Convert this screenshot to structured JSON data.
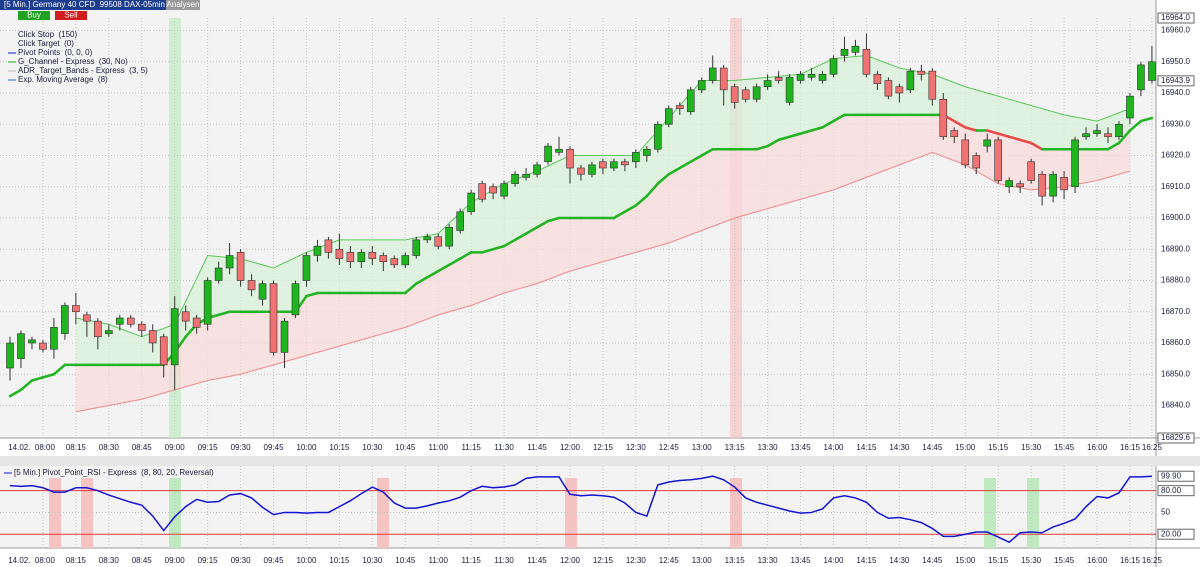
{
  "toolbar": {
    "buy": "Buy",
    "sell": "Sell",
    "analysen": "Analysen"
  },
  "chart_data": [
    {
      "type": "candlestick",
      "title": "[5 Min.] Germany 40 CFD  99508 DAX-05min",
      "legend": [
        "Click Stop  (150)",
        "Click Target  (0)",
        "Pivot Points  (0, 0, 0)",
        "G_Channel - Express  (30, No)",
        "ADR_Target_Bands - Express  (3, 5)",
        "Exp. Moving Average  (8)"
      ],
      "categories": [
        null,
        null,
        null,
        "14.02.  08:00",
        null,
        null,
        "08:15",
        null,
        null,
        "08:30",
        null,
        null,
        "08:45",
        null,
        null,
        "09:00",
        null,
        null,
        "09:15",
        null,
        null,
        "09:30",
        null,
        null,
        "09:45",
        null,
        null,
        "10:00",
        null,
        null,
        "10:15",
        null,
        null,
        "10:30",
        null,
        null,
        "10:45",
        null,
        null,
        "11:00",
        null,
        null,
        "11:15",
        null,
        null,
        "11:30",
        null,
        null,
        "11:45",
        null,
        null,
        "12:00",
        null,
        null,
        "12:15",
        null,
        null,
        "12:30",
        null,
        null,
        "12:45",
        null,
        null,
        "13:00",
        null,
        null,
        "13:15",
        null,
        null,
        "13:30",
        null,
        null,
        "13:45",
        null,
        null,
        "14:00",
        null,
        null,
        "14:15",
        null,
        null,
        "14:30",
        null,
        null,
        "14:45",
        null,
        null,
        "15:00",
        null,
        null,
        "15:15",
        null,
        null,
        "15:30",
        null,
        null,
        "15:45",
        null,
        null,
        "16:00",
        null,
        null,
        "16:15",
        null,
        "16:25"
      ],
      "open": [
        16852,
        16855,
        16860,
        16860,
        16858,
        16863,
        16872,
        16869,
        16867,
        16863,
        16866,
        16868,
        16866,
        16864,
        16862,
        16853,
        16870,
        16868,
        16866,
        16880,
        16884,
        16889,
        16880,
        16874,
        16879,
        16857,
        16869,
        16880,
        16888,
        16893,
        16890,
        16889,
        16886,
        16889,
        16888,
        16887,
        16885,
        16888,
        16893,
        16894,
        16891,
        16896,
        16902,
        16911,
        16910,
        16907,
        16911,
        16913,
        16914,
        16918,
        16921,
        16922,
        16916,
        16914,
        16918,
        16916,
        16918,
        16918,
        16920,
        16922,
        16930,
        16936,
        16934,
        16941,
        16944,
        16948,
        16942,
        16941,
        16938,
        16942,
        16945,
        16937,
        16944,
        16945,
        16944,
        16946,
        16952,
        16953,
        16954,
        16946,
        16944,
        16942,
        16941,
        16947,
        16947,
        16938,
        16928,
        16925,
        16920,
        16923,
        16925,
        16910,
        16911,
        16918,
        16914,
        16907,
        16913,
        16910,
        16926,
        16927,
        16927,
        16926,
        16932,
        16941,
        16944
      ],
      "high": [
        16862,
        16864,
        16862,
        16861,
        16868,
        16873,
        16876,
        16870,
        16868,
        16866,
        16869,
        16869,
        16867,
        16866,
        16863,
        16875,
        16872,
        16869,
        16881,
        16886,
        16892,
        16890,
        16882,
        16880,
        16880,
        16868,
        16880,
        16889,
        16893,
        16894,
        16895,
        16891,
        16890,
        16891,
        16889,
        16888,
        16889,
        16894,
        16895,
        16895,
        16898,
        16903,
        16909,
        16912,
        16911,
        16912,
        16915,
        16916,
        16918,
        16924,
        16926,
        16923,
        16917,
        16918,
        16919,
        16919,
        16919,
        16922,
        16923,
        16931,
        16936,
        16937,
        16942,
        16945,
        16952,
        16949,
        16943,
        16942,
        16943,
        16946,
        16947,
        16946,
        16947,
        16948,
        16947,
        16952,
        16958,
        16957,
        16959,
        16947,
        16945,
        16943,
        16948,
        16949,
        16948,
        16940,
        16929,
        16927,
        16921,
        16927,
        16926,
        16913,
        16912,
        16919,
        16915,
        16915,
        16915,
        16926,
        16929,
        16930,
        16929,
        16931,
        16940,
        16950,
        16955
      ],
      "low": [
        16848,
        16852,
        16858,
        16857,
        16855,
        16861,
        16866,
        16862,
        16858,
        16862,
        16864,
        16865,
        16862,
        16857,
        16849,
        16845,
        16864,
        16863,
        16864,
        16879,
        16882,
        16878,
        16875,
        16872,
        16856,
        16852,
        16868,
        16878,
        16886,
        16887,
        16885,
        16884,
        16884,
        16885,
        16883,
        16884,
        16884,
        16887,
        16892,
        16890,
        16890,
        16895,
        16901,
        16905,
        16906,
        16906,
        16910,
        16912,
        16913,
        16917,
        16920,
        16911,
        16912,
        16913,
        16914,
        16915,
        16915,
        16916,
        16918,
        16921,
        16929,
        16933,
        16933,
        16940,
        16943,
        16936,
        16935,
        16937,
        16937,
        16941,
        16943,
        16936,
        16943,
        16944,
        16943,
        16945,
        16950,
        16952,
        16945,
        16941,
        16938,
        16937,
        16940,
        16944,
        16936,
        16925,
        16924,
        16916,
        16914,
        16921,
        16911,
        16908,
        16908,
        16911,
        16904,
        16905,
        16906,
        16908,
        16925,
        16926,
        16924,
        16925,
        16930,
        16939,
        16943
      ],
      "close": [
        16860,
        16863,
        16861,
        16858,
        16865,
        16872,
        16870,
        16867,
        16862,
        16864,
        16868,
        16866,
        16864,
        16860,
        16853,
        16871,
        16867,
        16865,
        16880,
        16884,
        16888,
        16880,
        16877,
        16879,
        16857,
        16867,
        16879,
        16888,
        16891,
        16889,
        16887,
        16886,
        16889,
        16887,
        16886,
        16885,
        16888,
        16893,
        16894,
        16891,
        16897,
        16902,
        16908,
        16906,
        16908,
        16911,
        16914,
        16914,
        16917,
        16923,
        16922,
        16916,
        16914,
        16917,
        16916,
        16918,
        16917,
        16921,
        16922,
        16930,
        16935,
        16935,
        16941,
        16944,
        16948,
        16941,
        16937,
        16938,
        16942,
        16944,
        16944,
        16945,
        16946,
        16946,
        16946,
        16951,
        16954,
        16955,
        16946,
        16943,
        16939,
        16940,
        16947,
        16946,
        16938,
        16926,
        16926,
        16917,
        16916,
        16925,
        16912,
        16912,
        16910,
        16912,
        16907,
        16914,
        16909,
        16925,
        16927,
        16928,
        16926,
        16930,
        16939,
        16949,
        16950
      ],
      "up_color": "#1fb51f",
      "down_color": "#f07272",
      "channel": {
        "values": [
          16843,
          16845,
          16848,
          16849,
          16850,
          16853,
          16853,
          16853,
          16853,
          16853,
          16853,
          16853,
          16853,
          16853,
          16853,
          16857,
          16862,
          16866,
          16868,
          16869,
          16870,
          16870,
          16870,
          16870,
          16870,
          16870,
          16870,
          16875,
          16876,
          16876,
          16876,
          16876,
          16876,
          16876,
          16876,
          16876,
          16876,
          16879,
          16881,
          16883,
          16885,
          16887,
          16889,
          16889,
          16890,
          16891,
          16893,
          16895,
          16897,
          16899,
          16900,
          16900,
          16900,
          16900,
          16900,
          16900,
          16902,
          16904,
          16907,
          16911,
          16914,
          16916,
          16918,
          16920,
          16922,
          16922,
          16922,
          16922,
          16922,
          16923,
          16925,
          16926,
          16927,
          16928,
          16929,
          16931,
          16933,
          16933,
          16933,
          16933,
          16933,
          16933,
          16933,
          16933,
          16933,
          16933,
          16931,
          16929,
          16928,
          16928,
          16927,
          16926,
          16925,
          16924,
          16922,
          16922,
          16922,
          16922,
          16922,
          16922,
          16922,
          16924,
          16928,
          16931,
          16932
        ],
        "color": "#22b422",
        "down_color": "#e84a4a"
      },
      "upper_band": {
        "x": [
          "08:15",
          "08:30",
          "08:45",
          "09:00",
          "09:15",
          "09:30",
          "09:45",
          "10:00",
          "10:15",
          "10:30",
          "10:45",
          "11:00",
          "11:15",
          "11:30",
          "11:45",
          "12:00",
          "12:15",
          "12:30",
          "12:45",
          "13:00",
          "13:15",
          "13:30",
          "13:45",
          "14:00",
          "14:15",
          "14:30",
          "14:45",
          "15:00",
          "15:15",
          "15:30",
          "15:45",
          "16:00",
          "16:15"
        ],
        "values": [
          16868,
          16866,
          16862,
          16866,
          16888,
          16887,
          16884,
          16889,
          16893,
          16893,
          16893,
          16895,
          16905,
          16911,
          16915,
          16920,
          16920,
          16920,
          16932,
          16944,
          16944,
          16945,
          16946,
          16951,
          16952,
          16948,
          16946,
          16942,
          16939,
          16936,
          16933,
          16931,
          16935
        ],
        "color": "#5cc95c"
      },
      "lower_band": {
        "x": [
          "08:15",
          "08:30",
          "08:45",
          "09:00",
          "09:15",
          "09:30",
          "09:45",
          "10:00",
          "10:15",
          "10:30",
          "10:45",
          "11:00",
          "11:15",
          "11:30",
          "11:45",
          "12:00",
          "12:15",
          "12:30",
          "12:45",
          "13:00",
          "13:15",
          "13:30",
          "13:45",
          "14:00",
          "14:15",
          "14:30",
          "14:45",
          "15:00",
          "15:15",
          "15:30",
          "15:45",
          "16:00",
          "16:15"
        ],
        "values": [
          16838,
          16840,
          16842,
          16845,
          16848,
          16850,
          16853,
          16856,
          16859,
          16862,
          16865,
          16869,
          16872,
          16876,
          16879,
          16883,
          16886,
          16889,
          16892,
          16896,
          16900,
          16903,
          16906,
          16909,
          16913,
          16917,
          16921,
          16917,
          16911,
          16909,
          16910,
          16912,
          16915
        ],
        "color": "#f08a8a"
      },
      "ylim": [
        16829.6,
        16964
      ],
      "yticks": [
        {
          "value": 16964,
          "label": "16964.0"
        },
        {
          "value": 16960,
          "label": "16960.0"
        },
        {
          "value": 16950,
          "label": "16950.0"
        },
        {
          "value": 16940,
          "label": "16940.0"
        },
        {
          "value": 16930,
          "label": "16930.0"
        },
        {
          "value": 16920,
          "label": "16920.0"
        },
        {
          "value": 16910,
          "label": "16910.0"
        },
        {
          "value": 16900,
          "label": "16900.0"
        },
        {
          "value": 16890,
          "label": "16890.0"
        },
        {
          "value": 16880,
          "label": "16880.0"
        },
        {
          "value": 16870,
          "label": "16870.0"
        },
        {
          "value": 16860,
          "label": "16860.0"
        },
        {
          "value": 16850,
          "label": "16850.0"
        },
        {
          "value": 16840,
          "label": "16840.0"
        },
        16829.6
      ],
      "last_value": 16943.9,
      "grid": true
    },
    {
      "type": "line",
      "title": "[5 Min.] Pivot_Point_RSI - Express  (8, 80, 20, Reversal)",
      "values": [
        87,
        86,
        87,
        84,
        78,
        78,
        84,
        84,
        80,
        74,
        69,
        64,
        60,
        45,
        25,
        44,
        58,
        68,
        64,
        65,
        74,
        76,
        70,
        57,
        47,
        50,
        50,
        49,
        50,
        50,
        58,
        66,
        76,
        85,
        78,
        63,
        56,
        56,
        59,
        63,
        66,
        71,
        80,
        86,
        84,
        85,
        88,
        97,
        99,
        99,
        99,
        75,
        73,
        74,
        73,
        71,
        63,
        50,
        45,
        88,
        92,
        94,
        95,
        97,
        100,
        95,
        85,
        70,
        64,
        60,
        56,
        52,
        49,
        50,
        55,
        70,
        73,
        70,
        64,
        50,
        42,
        43,
        40,
        36,
        28,
        17,
        17,
        20,
        23,
        23,
        16,
        9,
        22,
        23,
        22,
        30,
        35,
        41,
        58,
        72,
        70,
        77,
        99,
        99,
        99.9
      ],
      "color": "#1414d4",
      "ylim": [
        1,
        114
      ],
      "yticks": [
        {
          "value": 80,
          "label": "80.00"
        },
        50,
        {
          "value": 20,
          "label": "20.00"
        }
      ],
      "level_color": "#e03a3a",
      "last_value": {
        "value": 99.9,
        "label": "99.90"
      },
      "grid": true
    }
  ]
}
